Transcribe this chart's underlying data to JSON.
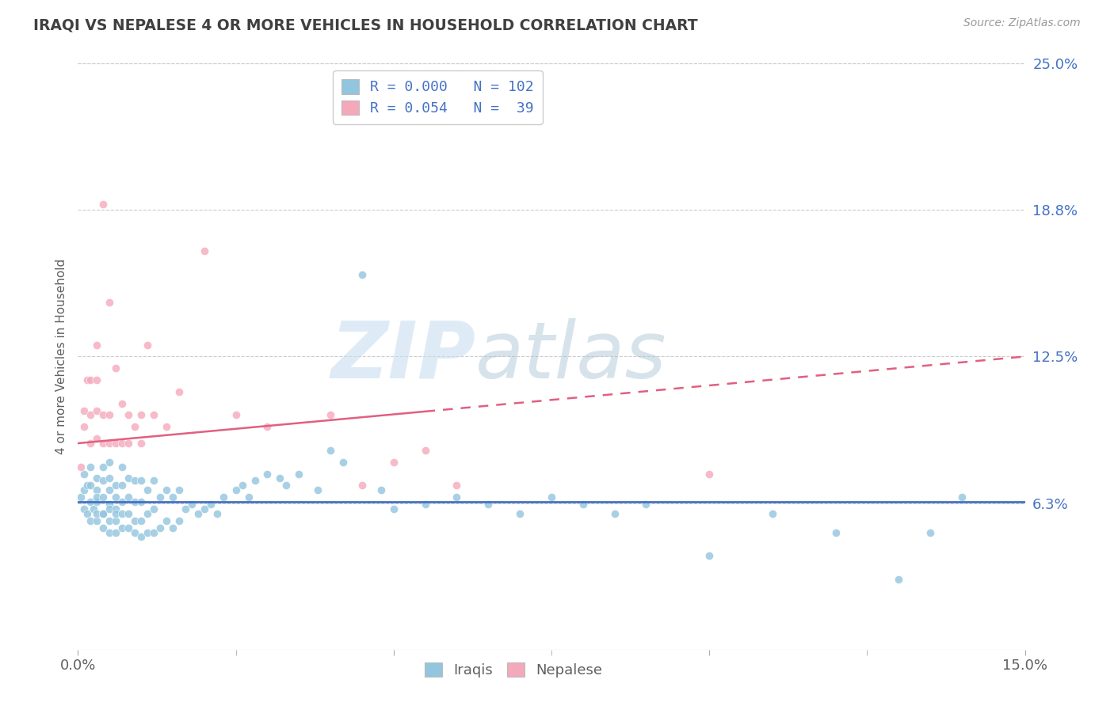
{
  "title": "IRAQI VS NEPALESE 4 OR MORE VEHICLES IN HOUSEHOLD CORRELATION CHART",
  "source": "Source: ZipAtlas.com",
  "ylabel": "4 or more Vehicles in Household",
  "xlim": [
    0.0,
    0.15
  ],
  "ylim": [
    0.0,
    0.25
  ],
  "xtick_vals": [
    0.0,
    0.05,
    0.1,
    0.15
  ],
  "xtick_labels": [
    "0.0%",
    "",
    "",
    "15.0%"
  ],
  "ytick_vals": [
    0.0625,
    0.125,
    0.1875,
    0.25
  ],
  "ytick_labels": [
    "6.3%",
    "12.5%",
    "18.8%",
    "25.0%"
  ],
  "legend_labels": [
    "Iraqis",
    "Nepalese"
  ],
  "legend_R": [
    0.0,
    0.054
  ],
  "legend_N": [
    102,
    39
  ],
  "blue_color": "#92C5DE",
  "pink_color": "#F4A9BB",
  "blue_line_color": "#4472C4",
  "pink_line_color": "#E06080",
  "grid_color": "#CCCCCC",
  "title_color": "#404040",
  "axis_label_color": "#606060",
  "legend_text_color": "#4472C4",
  "watermark_zip": "ZIP",
  "watermark_atlas": "atlas",
  "iraqis_x": [
    0.0005,
    0.001,
    0.001,
    0.001,
    0.0015,
    0.0015,
    0.002,
    0.002,
    0.002,
    0.002,
    0.0025,
    0.003,
    0.003,
    0.003,
    0.003,
    0.003,
    0.003,
    0.004,
    0.004,
    0.004,
    0.004,
    0.004,
    0.004,
    0.005,
    0.005,
    0.005,
    0.005,
    0.005,
    0.005,
    0.005,
    0.006,
    0.006,
    0.006,
    0.006,
    0.006,
    0.006,
    0.007,
    0.007,
    0.007,
    0.007,
    0.007,
    0.008,
    0.008,
    0.008,
    0.008,
    0.009,
    0.009,
    0.009,
    0.009,
    0.01,
    0.01,
    0.01,
    0.01,
    0.011,
    0.011,
    0.011,
    0.012,
    0.012,
    0.012,
    0.013,
    0.013,
    0.014,
    0.014,
    0.015,
    0.015,
    0.016,
    0.016,
    0.017,
    0.018,
    0.019,
    0.02,
    0.021,
    0.022,
    0.023,
    0.025,
    0.026,
    0.027,
    0.028,
    0.03,
    0.032,
    0.033,
    0.035,
    0.038,
    0.04,
    0.042,
    0.045,
    0.048,
    0.05,
    0.055,
    0.06,
    0.065,
    0.07,
    0.075,
    0.08,
    0.085,
    0.09,
    0.1,
    0.11,
    0.12,
    0.13,
    0.135,
    0.14
  ],
  "iraqis_y": [
    0.065,
    0.06,
    0.068,
    0.075,
    0.058,
    0.07,
    0.055,
    0.063,
    0.07,
    0.078,
    0.06,
    0.055,
    0.063,
    0.068,
    0.073,
    0.058,
    0.065,
    0.052,
    0.058,
    0.065,
    0.072,
    0.078,
    0.058,
    0.05,
    0.055,
    0.062,
    0.068,
    0.073,
    0.08,
    0.06,
    0.05,
    0.055,
    0.06,
    0.065,
    0.07,
    0.058,
    0.052,
    0.058,
    0.063,
    0.07,
    0.078,
    0.052,
    0.058,
    0.065,
    0.073,
    0.05,
    0.055,
    0.063,
    0.072,
    0.048,
    0.055,
    0.063,
    0.072,
    0.05,
    0.058,
    0.068,
    0.05,
    0.06,
    0.072,
    0.052,
    0.065,
    0.055,
    0.068,
    0.052,
    0.065,
    0.055,
    0.068,
    0.06,
    0.062,
    0.058,
    0.06,
    0.062,
    0.058,
    0.065,
    0.068,
    0.07,
    0.065,
    0.072,
    0.075,
    0.073,
    0.07,
    0.075,
    0.068,
    0.085,
    0.08,
    0.16,
    0.068,
    0.06,
    0.062,
    0.065,
    0.062,
    0.058,
    0.065,
    0.062,
    0.058,
    0.062,
    0.04,
    0.058,
    0.05,
    0.03,
    0.05,
    0.065
  ],
  "nepalese_x": [
    0.0005,
    0.001,
    0.001,
    0.0015,
    0.002,
    0.002,
    0.002,
    0.003,
    0.003,
    0.003,
    0.003,
    0.004,
    0.004,
    0.004,
    0.005,
    0.005,
    0.005,
    0.006,
    0.006,
    0.007,
    0.007,
    0.008,
    0.008,
    0.009,
    0.01,
    0.01,
    0.011,
    0.012,
    0.014,
    0.016,
    0.02,
    0.025,
    0.03,
    0.04,
    0.045,
    0.05,
    0.055,
    0.06,
    0.1
  ],
  "nepalese_y": [
    0.078,
    0.095,
    0.102,
    0.115,
    0.088,
    0.1,
    0.115,
    0.09,
    0.102,
    0.115,
    0.13,
    0.088,
    0.1,
    0.19,
    0.088,
    0.1,
    0.148,
    0.088,
    0.12,
    0.088,
    0.105,
    0.088,
    0.1,
    0.095,
    0.088,
    0.1,
    0.13,
    0.1,
    0.095,
    0.11,
    0.17,
    0.1,
    0.095,
    0.1,
    0.07,
    0.08,
    0.085,
    0.07,
    0.075
  ],
  "blue_line_y": 0.063,
  "pink_line_x0": 0.0,
  "pink_line_y0": 0.088,
  "pink_line_x1": 0.15,
  "pink_line_y1": 0.125
}
